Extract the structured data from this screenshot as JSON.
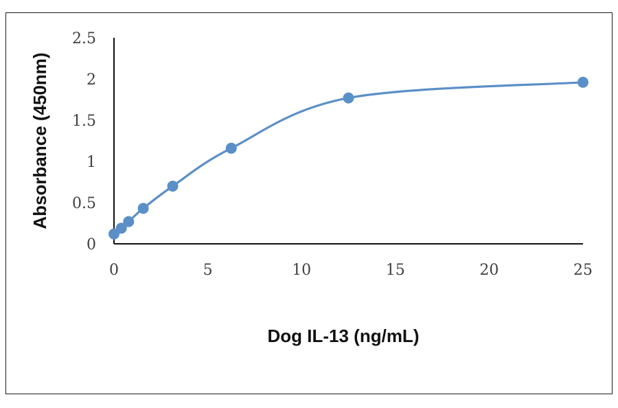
{
  "chart_data": {
    "type": "scatter",
    "xlabel": "Dog IL-13 (ng/mL)",
    "ylabel": "Absorbance (450nm)",
    "xlim": [
      0,
      25
    ],
    "ylim": [
      0,
      2.5
    ],
    "x_ticks": [
      "0",
      "5",
      "10",
      "15",
      "20",
      "25"
    ],
    "y_ticks": [
      "0",
      "0.5",
      "1",
      "1.5",
      "2",
      "2.5"
    ],
    "grid": false,
    "smooth_line": true,
    "color": "#5b8fc7",
    "series": [
      {
        "x": [
          0,
          0.39,
          0.78,
          1.56,
          3.13,
          6.25,
          12.5,
          25
        ],
        "y": [
          0.12,
          0.19,
          0.27,
          0.43,
          0.7,
          1.16,
          1.77,
          1.96
        ]
      }
    ]
  }
}
